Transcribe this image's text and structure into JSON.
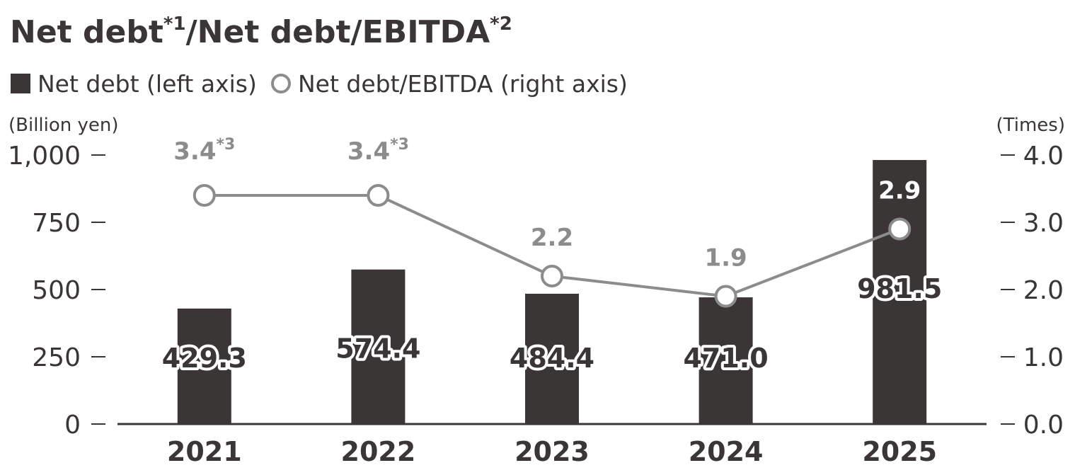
{
  "title": {
    "part1": "Net debt",
    "sup1": "*1",
    "part2": "/Net debt/EBITDA",
    "sup2": "*2"
  },
  "legend": {
    "bars": "Net debt (left axis)",
    "line": "Net debt/EBITDA (right axis)"
  },
  "colors": {
    "bar": "#3a3635",
    "line": "#8c8c8c",
    "axis": "#3a3635",
    "marker_fill": "#ffffff"
  },
  "chart_data": {
    "type": "bar",
    "categories": [
      "2021",
      "2022",
      "2023",
      "2024",
      "2025"
    ],
    "series": [
      {
        "name": "Net debt (left axis)",
        "type": "bar",
        "axis": "left",
        "values": [
          429.3,
          574.4,
          484.4,
          471.0,
          981.5
        ],
        "labels": [
          "429.3",
          "574.4",
          "484.4",
          "471.0",
          "981.5"
        ]
      },
      {
        "name": "Net debt/EBITDA (right axis)",
        "type": "line",
        "axis": "right",
        "values": [
          3.4,
          3.4,
          2.2,
          1.9,
          2.9
        ],
        "labels": [
          "3.4",
          "3.4",
          "2.2",
          "1.9",
          "2.9"
        ],
        "label_notes": [
          "*3",
          "*3",
          "",
          "",
          ""
        ]
      }
    ],
    "left_axis": {
      "unit": "(Billion yen)",
      "ylim": [
        0,
        1000
      ],
      "ticks": [
        0,
        250,
        500,
        750,
        1000
      ],
      "tick_labels": [
        "0",
        "250",
        "500",
        "750",
        "1,000"
      ]
    },
    "right_axis": {
      "unit": "(Times)",
      "ylim": [
        0,
        4
      ],
      "ticks": [
        0,
        1,
        2,
        3,
        4
      ],
      "tick_labels": [
        "0.0",
        "1.0",
        "2.0",
        "3.0",
        "4.0"
      ]
    },
    "grid": false,
    "legend_position": "top-left"
  }
}
